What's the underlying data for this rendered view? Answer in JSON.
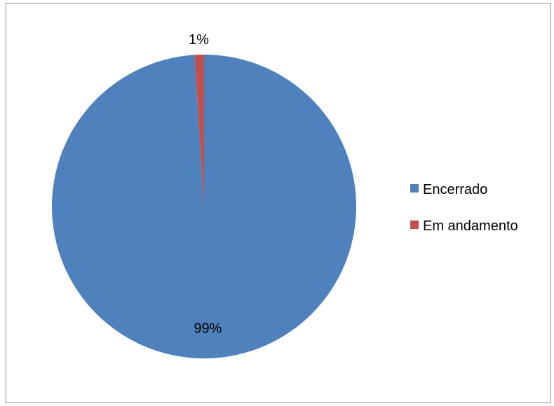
{
  "chart_data": {
    "type": "pie",
    "categories": [
      "Encerrado",
      "Em andamento"
    ],
    "values": [
      99,
      1
    ],
    "data_labels": [
      "99%",
      "1%"
    ],
    "colors": [
      "#4f81bd",
      "#c0504d"
    ],
    "legend": {
      "position": "right",
      "entries": [
        "Encerrado",
        "Em andamento"
      ]
    },
    "title": ""
  }
}
